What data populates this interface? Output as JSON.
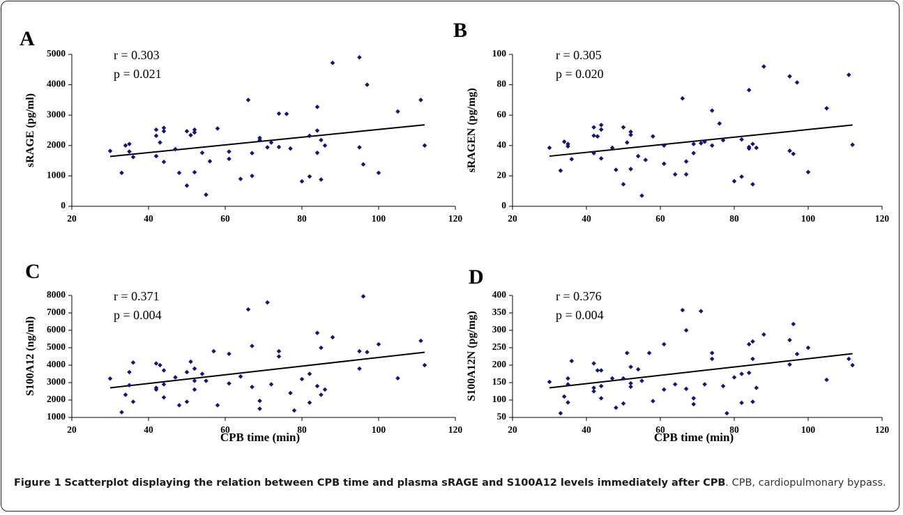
{
  "chart_data": [
    {
      "panel": "A",
      "type": "scatter",
      "ylabel": "sRAGE (pg/ml)",
      "xlabel": "",
      "xlim": [
        20,
        120
      ],
      "ylim": [
        0,
        5000
      ],
      "xticks": [
        "20",
        "40",
        "60",
        "80",
        "100",
        "120"
      ],
      "yticks": [
        "0",
        "1000",
        "2000",
        "3000",
        "4000",
        "5000"
      ],
      "annotation": [
        "r = 0.303",
        "p = 0.021"
      ],
      "trendline": {
        "x": [
          30,
          112
        ],
        "y": [
          1640,
          2680
        ]
      },
      "points": [
        [
          30,
          1820
        ],
        [
          33,
          1100
        ],
        [
          34,
          2000
        ],
        [
          35,
          1800
        ],
        [
          35,
          2050
        ],
        [
          36,
          1620
        ],
        [
          42,
          2520
        ],
        [
          42,
          2320
        ],
        [
          42,
          1650
        ],
        [
          43,
          2100
        ],
        [
          44,
          2580
        ],
        [
          44,
          2470
        ],
        [
          44,
          1460
        ],
        [
          47,
          1880
        ],
        [
          48,
          1100
        ],
        [
          50,
          2470
        ],
        [
          50,
          680
        ],
        [
          51,
          2340
        ],
        [
          52,
          2520
        ],
        [
          52,
          2430
        ],
        [
          52,
          1120
        ],
        [
          54,
          1760
        ],
        [
          55,
          380
        ],
        [
          56,
          1480
        ],
        [
          58,
          2560
        ],
        [
          61,
          1800
        ],
        [
          61,
          1560
        ],
        [
          64,
          900
        ],
        [
          66,
          3500
        ],
        [
          67,
          1750
        ],
        [
          67,
          1000
        ],
        [
          69,
          2250
        ],
        [
          69,
          2180
        ],
        [
          71,
          1940
        ],
        [
          72,
          2100
        ],
        [
          74,
          3050
        ],
        [
          74,
          1950
        ],
        [
          76,
          3040
        ],
        [
          77,
          1900
        ],
        [
          80,
          820
        ],
        [
          82,
          2320
        ],
        [
          82,
          980
        ],
        [
          84,
          3270
        ],
        [
          84,
          2490
        ],
        [
          84,
          1760
        ],
        [
          85,
          2180
        ],
        [
          85,
          880
        ],
        [
          86,
          2000
        ],
        [
          88,
          4720
        ],
        [
          95,
          4900
        ],
        [
          95,
          1940
        ],
        [
          96,
          1380
        ],
        [
          97,
          4000
        ],
        [
          100,
          1100
        ],
        [
          105,
          3120
        ],
        [
          111,
          3500
        ],
        [
          112,
          2000
        ]
      ]
    },
    {
      "panel": "B",
      "type": "scatter",
      "ylabel": "sRAGEN (pg/mg)",
      "xlabel": "",
      "xlim": [
        20,
        120
      ],
      "ylim": [
        0,
        100
      ],
      "xticks": [
        "20",
        "40",
        "60",
        "80",
        "100",
        "120"
      ],
      "yticks": [
        "0",
        "20",
        "40",
        "60",
        "80",
        "100"
      ],
      "annotation": [
        "r = 0.305",
        "p = 0.020"
      ],
      "trendline": {
        "x": [
          30,
          112
        ],
        "y": [
          33,
          53.5
        ]
      },
      "points": [
        [
          30,
          38.5
        ],
        [
          33,
          23.5
        ],
        [
          34,
          42.5
        ],
        [
          35,
          41
        ],
        [
          35,
          39.5
        ],
        [
          36,
          31
        ],
        [
          42,
          52
        ],
        [
          42,
          46.5
        ],
        [
          42,
          35
        ],
        [
          43,
          46
        ],
        [
          44,
          53.5
        ],
        [
          44,
          50.5
        ],
        [
          44,
          31.5
        ],
        [
          47,
          38.5
        ],
        [
          48,
          24
        ],
        [
          50,
          52
        ],
        [
          50,
          14.5
        ],
        [
          51,
          42
        ],
        [
          52,
          49
        ],
        [
          52,
          47
        ],
        [
          52,
          24.5
        ],
        [
          54,
          33
        ],
        [
          55,
          7
        ],
        [
          56,
          30.5
        ],
        [
          58,
          46
        ],
        [
          61,
          40
        ],
        [
          61,
          28
        ],
        [
          64,
          21
        ],
        [
          66,
          71
        ],
        [
          67,
          29.5
        ],
        [
          67,
          21
        ],
        [
          69,
          41
        ],
        [
          69,
          35
        ],
        [
          71,
          41.5
        ],
        [
          72,
          42.5
        ],
        [
          74,
          63
        ],
        [
          74,
          40
        ],
        [
          76,
          54.5
        ],
        [
          77,
          43.5
        ],
        [
          80,
          16.5
        ],
        [
          82,
          44
        ],
        [
          82,
          19.5
        ],
        [
          84,
          76.5
        ],
        [
          84,
          39
        ],
        [
          84,
          38
        ],
        [
          85,
          41
        ],
        [
          85,
          14.5
        ],
        [
          86,
          38.5
        ],
        [
          88,
          92
        ],
        [
          95,
          85.5
        ],
        [
          95,
          36.5
        ],
        [
          96,
          34.5
        ],
        [
          97,
          81.5
        ],
        [
          100,
          22.5
        ],
        [
          105,
          64.5
        ],
        [
          111,
          86.5
        ],
        [
          112,
          40.5
        ]
      ]
    },
    {
      "panel": "C",
      "type": "scatter",
      "ylabel": "S100A12 (ng/ml)",
      "xlabel": "CPB time (min)",
      "xlim": [
        20,
        120
      ],
      "ylim": [
        1000,
        8000
      ],
      "xticks": [
        "20",
        "40",
        "60",
        "80",
        "100",
        "120"
      ],
      "yticks": [
        "1000",
        "2000",
        "3000",
        "4000",
        "5000",
        "6000",
        "7000",
        "8000"
      ],
      "annotation": [
        "r = 0.371",
        "p = 0.004"
      ],
      "trendline": {
        "x": [
          30,
          112
        ],
        "y": [
          2700,
          4740
        ]
      },
      "points": [
        [
          30,
          3230
        ],
        [
          33,
          1300
        ],
        [
          34,
          2300
        ],
        [
          35,
          2850
        ],
        [
          35,
          3600
        ],
        [
          36,
          4150
        ],
        [
          36,
          1900
        ],
        [
          42,
          4100
        ],
        [
          42,
          2700
        ],
        [
          42,
          2600
        ],
        [
          43,
          4000
        ],
        [
          44,
          3700
        ],
        [
          44,
          2900
        ],
        [
          44,
          2150
        ],
        [
          47,
          3300
        ],
        [
          48,
          1700
        ],
        [
          50,
          3600
        ],
        [
          50,
          1900
        ],
        [
          51,
          4200
        ],
        [
          52,
          3800
        ],
        [
          52,
          3100
        ],
        [
          52,
          2600
        ],
        [
          54,
          3500
        ],
        [
          55,
          3100
        ],
        [
          57,
          4800
        ],
        [
          58,
          1700
        ],
        [
          61,
          4650
        ],
        [
          61,
          2950
        ],
        [
          64,
          3350
        ],
        [
          66,
          7200
        ],
        [
          67,
          5100
        ],
        [
          67,
          2750
        ],
        [
          69,
          1500
        ],
        [
          69,
          1950
        ],
        [
          71,
          7600
        ],
        [
          72,
          2900
        ],
        [
          74,
          4800
        ],
        [
          74,
          4500
        ],
        [
          77,
          2400
        ],
        [
          78,
          1400
        ],
        [
          80,
          3200
        ],
        [
          82,
          3500
        ],
        [
          82,
          1850
        ],
        [
          84,
          5850
        ],
        [
          84,
          2800
        ],
        [
          85,
          5000
        ],
        [
          85,
          2300
        ],
        [
          86,
          2600
        ],
        [
          88,
          5600
        ],
        [
          95,
          4800
        ],
        [
          95,
          3800
        ],
        [
          96,
          7950
        ],
        [
          97,
          4750
        ],
        [
          100,
          5200
        ],
        [
          105,
          3250
        ],
        [
          111,
          5400
        ],
        [
          112,
          4000
        ]
      ]
    },
    {
      "panel": "D",
      "type": "scatter",
      "ylabel": "S100A12N (pg/mg)",
      "xlabel": "CPB time (min)",
      "xlim": [
        20,
        120
      ],
      "ylim": [
        50,
        400
      ],
      "xticks": [
        "20",
        "40",
        "60",
        "80",
        "100",
        "120"
      ],
      "yticks": [
        "50",
        "100",
        "150",
        "200",
        "250",
        "300",
        "350",
        "400"
      ],
      "annotation": [
        "r = 0.376",
        "p = 0.004"
      ],
      "trendline": {
        "x": [
          30,
          112
        ],
        "y": [
          135,
          233
        ]
      },
      "points": [
        [
          30,
          152
        ],
        [
          33,
          62
        ],
        [
          34,
          110
        ],
        [
          35,
          145
        ],
        [
          35,
          93
        ],
        [
          35,
          162
        ],
        [
          36,
          212
        ],
        [
          42,
          205
        ],
        [
          42,
          135
        ],
        [
          42,
          125
        ],
        [
          43,
          185
        ],
        [
          44,
          185
        ],
        [
          44,
          140
        ],
        [
          44,
          105
        ],
        [
          47,
          162
        ],
        [
          48,
          78
        ],
        [
          50,
          162
        ],
        [
          50,
          90
        ],
        [
          51,
          235
        ],
        [
          52,
          195
        ],
        [
          52,
          148
        ],
        [
          52,
          138
        ],
        [
          54,
          188
        ],
        [
          55,
          155
        ],
        [
          57,
          235
        ],
        [
          58,
          97
        ],
        [
          61,
          260
        ],
        [
          61,
          130
        ],
        [
          64,
          145
        ],
        [
          66,
          358
        ],
        [
          67,
          300
        ],
        [
          67,
          132
        ],
        [
          69,
          105
        ],
        [
          69,
          88
        ],
        [
          71,
          355
        ],
        [
          72,
          145
        ],
        [
          74,
          235
        ],
        [
          74,
          218
        ],
        [
          77,
          140
        ],
        [
          78,
          62
        ],
        [
          80,
          165
        ],
        [
          82,
          175
        ],
        [
          82,
          92
        ],
        [
          84,
          260
        ],
        [
          84,
          178
        ],
        [
          85,
          218
        ],
        [
          85,
          268
        ],
        [
          85,
          95
        ],
        [
          86,
          135
        ],
        [
          88,
          288
        ],
        [
          95,
          272
        ],
        [
          95,
          202
        ],
        [
          96,
          318
        ],
        [
          97,
          232
        ],
        [
          100,
          250
        ],
        [
          105,
          158
        ],
        [
          111,
          218
        ],
        [
          112,
          200
        ]
      ]
    }
  ],
  "caption": {
    "label": "Figure 1",
    "title": "Scatterplot displaying the relation between CPB time and plasma sRAGE and S100A12 levels immediately after CPB",
    "text": ". CPB, cardiopulmonary bypass."
  },
  "colors": {
    "marker": "#141473",
    "line": "#000000",
    "axis": "#000000"
  }
}
